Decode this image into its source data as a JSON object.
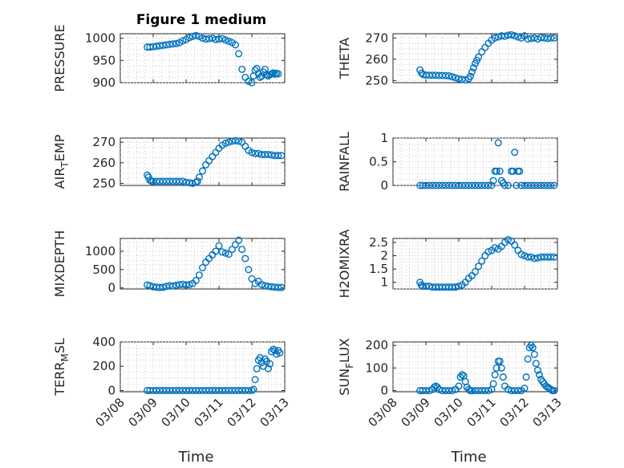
{
  "figure_title": "Figure 1 medium",
  "colors": {
    "marker": "#0072BD",
    "axis": "#262626",
    "grid": "#c8c8c8"
  },
  "chart_data": [
    {
      "type": "scatter",
      "id": "pressure",
      "ylabel": "PRESSURE",
      "ylim": [
        900,
        1010
      ],
      "yticks": [
        900,
        950,
        1000
      ],
      "ytick_labels": [
        "900",
        "950",
        "1000"
      ],
      "xlim": [
        "03/08",
        "03/13"
      ],
      "xticks": [
        "03/08",
        "03/09",
        "03/10",
        "03/11",
        "03/12",
        "03/13"
      ],
      "x": [
        0.82,
        0.9,
        1.0,
        1.1,
        1.2,
        1.3,
        1.4,
        1.5,
        1.6,
        1.7,
        1.8,
        1.9,
        2.0,
        2.1,
        2.2,
        2.3,
        2.4,
        2.5,
        2.6,
        2.7,
        2.8,
        2.9,
        3.0,
        3.1,
        3.2,
        3.3,
        3.4,
        3.5,
        3.6,
        3.7,
        3.8,
        3.9,
        4.0,
        4.05,
        4.1,
        4.15,
        4.2,
        4.25,
        4.3,
        4.35,
        4.4,
        4.45,
        4.5,
        4.55,
        4.6,
        4.65,
        4.7,
        4.75,
        4.8
      ],
      "y": [
        980,
        980,
        981,
        982,
        983,
        984,
        985,
        986,
        987,
        988,
        990,
        994,
        997,
        1001,
        1004,
        1006,
        1004,
        1000,
        998,
        999,
        1000,
        997,
        998,
        999,
        996,
        993,
        990,
        985,
        965,
        930,
        912,
        903,
        900,
        915,
        928,
        932,
        920,
        912,
        915,
        924,
        930,
        918,
        915,
        918,
        920,
        922,
        919,
        921,
        920
      ]
    },
    {
      "type": "scatter",
      "id": "theta",
      "ylabel": "THETA",
      "ylim": [
        249,
        272
      ],
      "yticks": [
        250,
        260,
        270
      ],
      "ytick_labels": [
        "250",
        "260",
        "270"
      ],
      "xlim": [
        "03/08",
        "03/13"
      ],
      "xticks": [
        "03/08",
        "03/09",
        "03/10",
        "03/11",
        "03/12",
        "03/13"
      ],
      "x": [
        0.82,
        0.87,
        0.92,
        1.0,
        1.1,
        1.2,
        1.3,
        1.4,
        1.5,
        1.6,
        1.7,
        1.8,
        1.9,
        2.0,
        2.1,
        2.2,
        2.3,
        2.35,
        2.4,
        2.45,
        2.5,
        2.55,
        2.6,
        2.7,
        2.8,
        2.9,
        3.0,
        3.1,
        3.2,
        3.3,
        3.4,
        3.5,
        3.6,
        3.7,
        3.8,
        3.9,
        4.0,
        4.1,
        4.2,
        4.3,
        4.4,
        4.5,
        4.6,
        4.7,
        4.8,
        4.9
      ],
      "y": [
        255,
        253.5,
        252.8,
        252.6,
        252.5,
        252.5,
        252.5,
        252.4,
        252.4,
        252.3,
        252.2,
        251.8,
        251.3,
        250.8,
        250.5,
        250.3,
        250.8,
        252,
        254,
        256,
        258,
        259.5,
        261,
        263.5,
        265.5,
        267.5,
        269,
        270,
        270.5,
        271,
        270.8,
        271.3,
        271.5,
        271,
        270.5,
        270,
        271,
        269.5,
        269.8,
        270,
        269.5,
        270.2,
        270,
        269.8,
        270,
        270
      ]
    },
    {
      "type": "scatter",
      "id": "air_temp",
      "ylabel": "AIR_TEMP",
      "ylim": [
        249,
        272
      ],
      "yticks": [
        250,
        260,
        270
      ],
      "ytick_labels": [
        "250",
        "260",
        "270"
      ],
      "xlim": [
        "03/08",
        "03/13"
      ],
      "xticks": [
        "03/08",
        "03/09",
        "03/10",
        "03/11",
        "03/12",
        "03/13"
      ],
      "x": [
        0.82,
        0.86,
        0.9,
        0.95,
        1.0,
        1.1,
        1.2,
        1.3,
        1.4,
        1.5,
        1.6,
        1.7,
        1.8,
        1.9,
        2.0,
        2.1,
        2.2,
        2.3,
        2.35,
        2.4,
        2.5,
        2.6,
        2.7,
        2.8,
        2.9,
        3.0,
        3.1,
        3.2,
        3.3,
        3.4,
        3.5,
        3.6,
        3.7,
        3.8,
        3.9,
        4.0,
        4.1,
        4.2,
        4.3,
        4.4,
        4.5,
        4.6,
        4.7,
        4.8,
        4.9
      ],
      "y": [
        254,
        253,
        251.5,
        251,
        251,
        251,
        251,
        251,
        251,
        251,
        251,
        251,
        251,
        251,
        250.5,
        250.3,
        250,
        250.5,
        251,
        253,
        256,
        259,
        261,
        263,
        265,
        267,
        268.5,
        269.5,
        270,
        270.5,
        270.8,
        270.5,
        270,
        268,
        266,
        265,
        264.5,
        264.5,
        264,
        264,
        264,
        263.8,
        263.5,
        263.5,
        263.5
      ]
    },
    {
      "type": "scatter",
      "id": "rainfall",
      "ylabel": "RAINFALL",
      "ylim": [
        0,
        1
      ],
      "yticks": [
        0,
        0.5,
        1
      ],
      "ytick_labels": [
        "0",
        "0.5",
        "1"
      ],
      "xlim": [
        "03/08",
        "03/13"
      ],
      "xticks": [
        "03/08",
        "03/09",
        "03/10",
        "03/11",
        "03/12",
        "03/13"
      ],
      "x": [
        0.82,
        0.9,
        1.0,
        1.1,
        1.2,
        1.3,
        1.4,
        1.5,
        1.6,
        1.7,
        1.8,
        1.9,
        2.0,
        2.1,
        2.2,
        2.3,
        2.4,
        2.5,
        2.6,
        2.7,
        2.8,
        2.9,
        3.0,
        3.05,
        3.1,
        3.15,
        3.2,
        3.25,
        3.3,
        3.35,
        3.4,
        3.5,
        3.6,
        3.65,
        3.7,
        3.75,
        3.8,
        3.85,
        3.9,
        4.0,
        4.1,
        4.2,
        4.3,
        4.4,
        4.5,
        4.6,
        4.7,
        4.8,
        4.9
      ],
      "y": [
        0,
        0,
        0,
        0,
        0,
        0,
        0,
        0,
        0,
        0,
        0,
        0,
        0,
        0,
        0,
        0,
        0,
        0,
        0,
        0,
        0,
        0,
        0,
        0.1,
        0.3,
        0.3,
        0.9,
        0.3,
        0.1,
        0.05,
        0,
        0,
        0.3,
        0.3,
        0.7,
        0,
        0.3,
        0.3,
        0,
        0,
        0,
        0,
        0,
        0,
        0,
        0,
        0,
        0,
        0
      ]
    },
    {
      "type": "scatter",
      "id": "mixdepth",
      "ylabel": "MIXDEPTH",
      "ylim": [
        -30,
        1350
      ],
      "yticks": [
        0,
        500,
        1000
      ],
      "ytick_labels": [
        "0",
        "500",
        "1000"
      ],
      "xlim": [
        "03/08",
        "03/13"
      ],
      "xticks": [
        "03/08",
        "03/09",
        "03/10",
        "03/11",
        "03/12",
        "03/13"
      ],
      "x": [
        0.82,
        0.9,
        1.0,
        1.1,
        1.2,
        1.3,
        1.4,
        1.5,
        1.6,
        1.7,
        1.8,
        1.9,
        2.0,
        2.1,
        2.2,
        2.3,
        2.4,
        2.5,
        2.6,
        2.7,
        2.8,
        2.9,
        3.0,
        3.1,
        3.2,
        3.3,
        3.4,
        3.5,
        3.6,
        3.7,
        3.8,
        3.9,
        4.0,
        4.1,
        4.2,
        4.3,
        4.4,
        4.5,
        4.6,
        4.7,
        4.8,
        4.9
      ],
      "y": [
        80,
        60,
        30,
        20,
        10,
        15,
        40,
        60,
        50,
        70,
        90,
        100,
        80,
        90,
        120,
        200,
        350,
        550,
        700,
        800,
        900,
        1000,
        1150,
        980,
        950,
        920,
        1050,
        1180,
        1300,
        1050,
        800,
        500,
        250,
        120,
        180,
        90,
        60,
        40,
        30,
        20,
        10,
        10
      ]
    },
    {
      "type": "scatter",
      "id": "h2omixra",
      "ylabel": "H2OMIXRA",
      "ylim": [
        0.75,
        2.65
      ],
      "yticks": [
        1,
        1.5,
        2,
        2.5
      ],
      "ytick_labels": [
        "1",
        "1.5",
        "2",
        "2.5"
      ],
      "xlim": [
        "03/08",
        "03/13"
      ],
      "xticks": [
        "03/08",
        "03/09",
        "03/10",
        "03/11",
        "03/12",
        "03/13"
      ],
      "x": [
        0.82,
        0.86,
        0.9,
        1.0,
        1.1,
        1.2,
        1.3,
        1.4,
        1.5,
        1.6,
        1.7,
        1.8,
        1.9,
        2.0,
        2.1,
        2.2,
        2.3,
        2.4,
        2.5,
        2.6,
        2.7,
        2.8,
        2.9,
        3.0,
        3.1,
        3.2,
        3.3,
        3.4,
        3.5,
        3.6,
        3.7,
        3.8,
        3.9,
        4.0,
        4.1,
        4.2,
        4.3,
        4.4,
        4.5,
        4.6,
        4.7,
        4.8,
        4.9
      ],
      "y": [
        1.0,
        0.9,
        0.85,
        0.85,
        0.85,
        0.82,
        0.82,
        0.82,
        0.82,
        0.82,
        0.82,
        0.82,
        0.82,
        0.85,
        0.9,
        1.0,
        1.15,
        1.25,
        1.4,
        1.6,
        1.8,
        2.0,
        2.15,
        2.2,
        2.3,
        2.25,
        2.35,
        2.5,
        2.6,
        2.55,
        2.4,
        2.2,
        2.05,
        2.0,
        1.95,
        1.95,
        1.9,
        1.92,
        1.95,
        1.95,
        1.95,
        1.95,
        1.95
      ]
    },
    {
      "type": "scatter",
      "id": "terr_msl",
      "ylabel": "TERR_MSL",
      "ylim": [
        -10,
        400
      ],
      "yticks": [
        0,
        200,
        400
      ],
      "ytick_labels": [
        "0",
        "200",
        "400"
      ],
      "xlim": [
        "03/08",
        "03/13"
      ],
      "xticks": [
        "03/08",
        "03/09",
        "03/10",
        "03/11",
        "03/12",
        "03/13"
      ],
      "x": [
        0.82,
        0.9,
        1.0,
        1.1,
        1.2,
        1.3,
        1.4,
        1.5,
        1.6,
        1.7,
        1.8,
        1.9,
        2.0,
        2.1,
        2.2,
        2.3,
        2.4,
        2.5,
        2.6,
        2.7,
        2.8,
        2.9,
        3.0,
        3.1,
        3.2,
        3.3,
        3.4,
        3.5,
        3.6,
        3.7,
        3.8,
        3.9,
        4.0,
        4.05,
        4.1,
        4.15,
        4.2,
        4.25,
        4.3,
        4.35,
        4.4,
        4.45,
        4.5,
        4.55,
        4.6,
        4.65,
        4.7,
        4.75,
        4.8,
        4.85
      ],
      "y": [
        0,
        0,
        0,
        0,
        0,
        0,
        0,
        0,
        0,
        0,
        0,
        0,
        0,
        0,
        0,
        0,
        0,
        0,
        0,
        0,
        0,
        0,
        0,
        0,
        0,
        0,
        0,
        0,
        0,
        0,
        0,
        0,
        0,
        10,
        90,
        180,
        250,
        270,
        230,
        200,
        260,
        240,
        180,
        220,
        320,
        340,
        330,
        300,
        330,
        310
      ]
    },
    {
      "type": "scatter",
      "id": "sun_flux",
      "ylabel": "SUN_FLUX",
      "ylim": [
        -5,
        215
      ],
      "yticks": [
        0,
        100,
        200
      ],
      "ytick_labels": [
        "0",
        "100",
        "200"
      ],
      "xlim": [
        "03/08",
        "03/13"
      ],
      "xticks": [
        "03/08",
        "03/09",
        "03/10",
        "03/11",
        "03/12",
        "03/13"
      ],
      "x": [
        0.82,
        0.9,
        1.0,
        1.1,
        1.2,
        1.25,
        1.3,
        1.35,
        1.4,
        1.5,
        1.6,
        1.7,
        1.8,
        1.9,
        2.0,
        2.05,
        2.1,
        2.15,
        2.2,
        2.25,
        2.3,
        2.35,
        2.4,
        2.5,
        2.6,
        2.7,
        2.8,
        2.9,
        3.0,
        3.05,
        3.1,
        3.15,
        3.2,
        3.25,
        3.3,
        3.35,
        3.4,
        3.5,
        3.6,
        3.7,
        3.8,
        3.9,
        4.0,
        4.05,
        4.1,
        4.15,
        4.2,
        4.25,
        4.3,
        4.35,
        4.4,
        4.45,
        4.5,
        4.55,
        4.6,
        4.65,
        4.7,
        4.75,
        4.8,
        4.85,
        4.9
      ],
      "y": [
        0,
        0,
        0,
        0,
        5,
        15,
        20,
        15,
        5,
        0,
        0,
        0,
        0,
        5,
        20,
        60,
        70,
        65,
        40,
        15,
        5,
        0,
        0,
        0,
        0,
        0,
        0,
        0,
        5,
        30,
        70,
        100,
        130,
        130,
        100,
        60,
        20,
        5,
        0,
        0,
        0,
        0,
        10,
        60,
        140,
        190,
        200,
        190,
        160,
        120,
        90,
        70,
        50,
        40,
        30,
        20,
        15,
        10,
        5,
        0,
        0
      ]
    }
  ],
  "xaxis_label": "Time"
}
